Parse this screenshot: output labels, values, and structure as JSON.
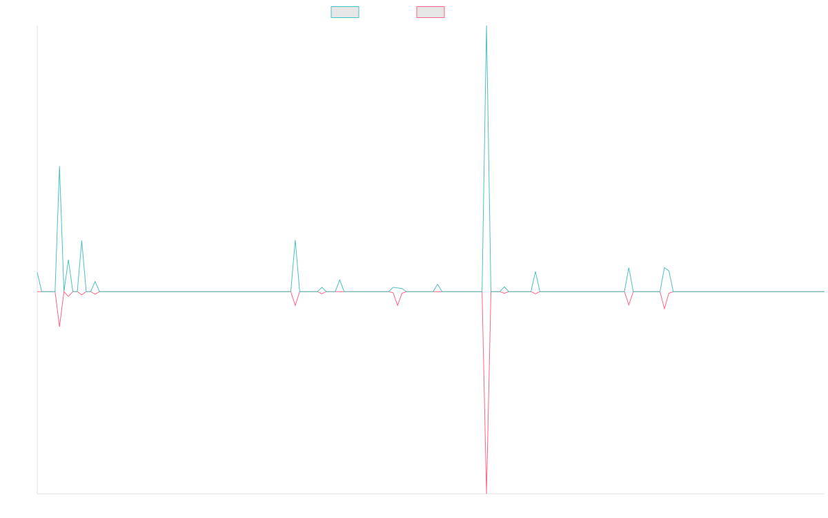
{
  "chart_data": {
    "type": "line",
    "ylim": [
      -3.8,
      5
    ],
    "legend": "top",
    "series": [
      {
        "color": "#4bc0c0",
        "values": [
          0.36,
          0,
          0,
          0,
          0,
          2.36,
          0,
          0.6,
          0,
          0,
          0.96,
          0,
          0,
          0.19,
          0,
          0,
          0,
          0,
          0,
          0,
          0,
          0,
          0,
          0,
          0,
          0,
          0,
          0,
          0,
          0,
          0,
          0,
          0,
          0,
          0,
          0,
          0,
          0,
          0,
          0,
          0,
          0,
          0,
          0,
          0,
          0,
          0,
          0,
          0,
          0,
          0,
          0,
          0,
          0,
          0,
          0,
          0,
          0,
          0.97,
          0,
          0,
          0,
          0,
          0,
          0.08,
          0,
          0,
          0,
          0.22,
          0,
          0,
          0,
          0,
          0,
          0,
          0,
          0,
          0,
          0,
          0,
          0.08,
          0.07,
          0.06,
          0,
          0,
          0,
          0,
          0,
          0,
          0,
          0.14,
          0,
          0,
          0,
          0,
          0,
          0,
          0,
          0,
          0,
          0,
          5,
          0,
          0,
          0,
          0.09,
          0,
          0,
          0,
          0,
          0,
          0,
          0.38,
          0,
          0,
          0,
          0,
          0,
          0,
          0,
          0,
          0,
          0,
          0,
          0,
          0,
          0,
          0,
          0,
          0,
          0,
          0,
          0,
          0.45,
          0,
          0,
          0,
          0,
          0,
          0,
          0,
          0.45,
          0.39,
          0,
          0,
          0,
          0,
          0,
          0,
          0,
          0,
          0,
          0,
          0,
          0,
          0,
          0,
          0,
          0,
          0,
          0,
          0,
          0,
          0,
          0,
          0,
          0,
          0,
          0,
          0,
          0,
          0,
          0,
          0,
          0,
          0,
          0,
          0
        ]
      },
      {
        "color": "#ff6384",
        "values": [
          0,
          0,
          0,
          0,
          0,
          -0.66,
          0,
          -0.09,
          0,
          0,
          -0.06,
          0,
          0,
          -0.05,
          0,
          0,
          0,
          0,
          0,
          0,
          0,
          0,
          0,
          0,
          0,
          0,
          0,
          0,
          0,
          0,
          0,
          0,
          0,
          0,
          0,
          0,
          0,
          0,
          0,
          0,
          0,
          0,
          0,
          0,
          0,
          0,
          0,
          0,
          0,
          0,
          0,
          0,
          0,
          0,
          0,
          0,
          0,
          0,
          -0.26,
          0,
          0,
          0,
          0,
          0,
          -0.04,
          0,
          0,
          0,
          0,
          0,
          0,
          0,
          0,
          0,
          0,
          0,
          0,
          0,
          0,
          0,
          -0.02,
          -0.26,
          -0.03,
          0,
          0,
          0,
          0,
          0,
          0,
          0,
          0,
          0,
          0,
          0,
          0,
          0,
          0,
          0,
          0,
          0,
          0,
          -3.8,
          0,
          0,
          0,
          -0.03,
          0,
          0,
          0,
          0,
          0,
          0,
          -0.04,
          0,
          0,
          0,
          0,
          0,
          0,
          0,
          0,
          0,
          0,
          0,
          0,
          0,
          0,
          0,
          0,
          0,
          0,
          0,
          0,
          -0.25,
          0,
          0,
          0,
          0,
          0,
          0,
          0,
          -0.32,
          -0.03,
          0,
          0,
          0,
          0,
          0,
          0,
          0,
          0,
          0,
          0,
          0,
          0,
          0,
          0,
          0,
          0,
          0,
          0,
          0,
          0,
          0,
          0,
          0,
          0,
          0,
          0,
          0,
          0,
          0,
          0,
          0,
          0,
          0,
          0,
          0
        ]
      }
    ]
  }
}
